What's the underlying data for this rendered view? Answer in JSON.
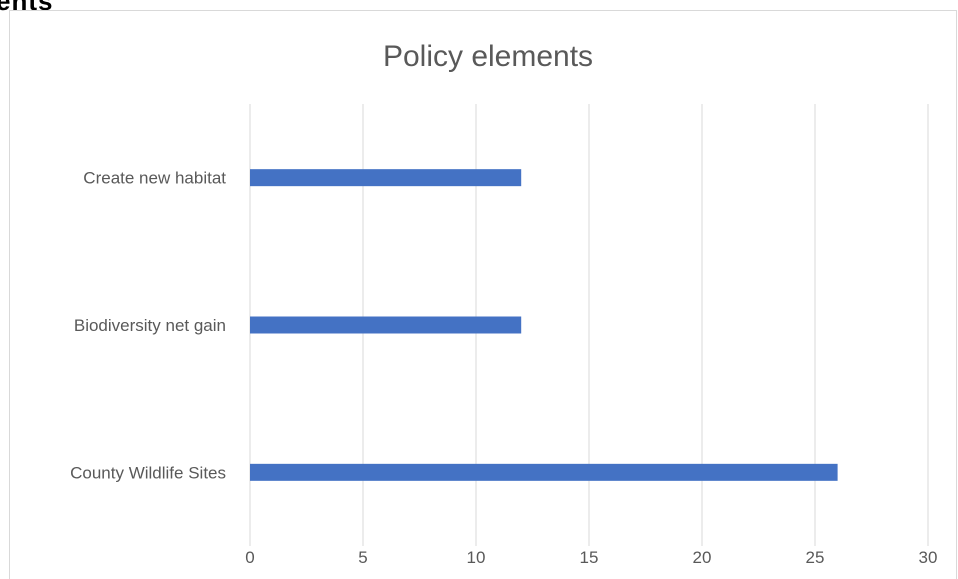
{
  "page_fragment": "ents",
  "chart_data": {
    "type": "bar",
    "orientation": "horizontal",
    "title": "Policy elements",
    "categories": [
      "Create new habitat",
      "Biodiversity net gain",
      "County Wildlife Sites"
    ],
    "values": [
      12,
      12,
      26
    ],
    "xlim": [
      0,
      30
    ],
    "x_ticks": [
      "0",
      "5",
      "10",
      "15",
      "20",
      "25",
      "30"
    ],
    "xlabel": "",
    "ylabel": "",
    "grid": "vertical",
    "legend": "none",
    "colors": {
      "bar": "#4472C4",
      "grid": "#d9d9d9",
      "text": "#595959"
    }
  }
}
